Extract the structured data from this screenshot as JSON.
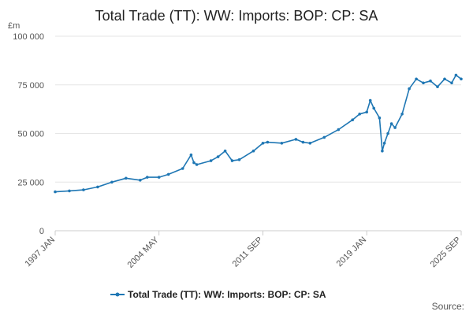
{
  "chart_data": {
    "type": "line",
    "title": "Total Trade (TT): WW: Imports: BOP: CP: SA",
    "unit_label": "£m",
    "ylim": [
      0,
      100000
    ],
    "yticks": [
      {
        "value": 0,
        "label": "0"
      },
      {
        "value": 25000,
        "label": "25 000"
      },
      {
        "value": 50000,
        "label": "50 000"
      },
      {
        "value": 75000,
        "label": "75 000"
      },
      {
        "value": 100000,
        "label": "100 000"
      }
    ],
    "xlim": [
      1997.0,
      2025.67
    ],
    "xticks": [
      {
        "value": 1997.0,
        "label": "1997 JAN"
      },
      {
        "value": 2004.33,
        "label": "2004 MAY"
      },
      {
        "value": 2011.67,
        "label": "2011 SEP"
      },
      {
        "value": 2019.0,
        "label": "2019 JAN"
      },
      {
        "value": 2025.67,
        "label": "2025 SEP"
      }
    ],
    "series": [
      {
        "name": "Total Trade (TT): WW: Imports: BOP: CP: SA",
        "color": "#1f77b4",
        "x": [
          1997.0,
          1998.0,
          1999.0,
          2000.0,
          2001.0,
          2002.0,
          2003.0,
          2003.5,
          2004.33,
          2005.0,
          2006.0,
          2006.6,
          2006.8,
          2007.0,
          2008.0,
          2008.5,
          2009.0,
          2009.5,
          2010.0,
          2011.0,
          2011.67,
          2012.0,
          2013.0,
          2014.0,
          2014.5,
          2015.0,
          2016.0,
          2017.0,
          2018.0,
          2018.5,
          2019.0,
          2019.25,
          2019.5,
          2019.9,
          2020.1,
          2020.25,
          2020.5,
          2020.75,
          2021.0,
          2021.5,
          2022.0,
          2022.5,
          2023.0,
          2023.5,
          2024.0,
          2024.5,
          2025.0,
          2025.3,
          2025.67
        ],
        "y": [
          20000,
          20500,
          21000,
          22500,
          25000,
          27000,
          26000,
          27500,
          27500,
          29000,
          32000,
          39000,
          35000,
          34000,
          36000,
          38000,
          41000,
          36000,
          36500,
          41000,
          45000,
          45500,
          45000,
          47000,
          45500,
          45000,
          48000,
          52000,
          57000,
          60000,
          61000,
          67000,
          63000,
          58000,
          41000,
          45000,
          50000,
          55000,
          53000,
          60000,
          73000,
          78000,
          76000,
          77000,
          74000,
          78000,
          76000,
          80000,
          78000
        ]
      }
    ]
  },
  "legend": {
    "label": "Total Trade (TT): WW: Imports: BOP: CP: SA"
  },
  "footer": {
    "source_label": "Source:"
  }
}
